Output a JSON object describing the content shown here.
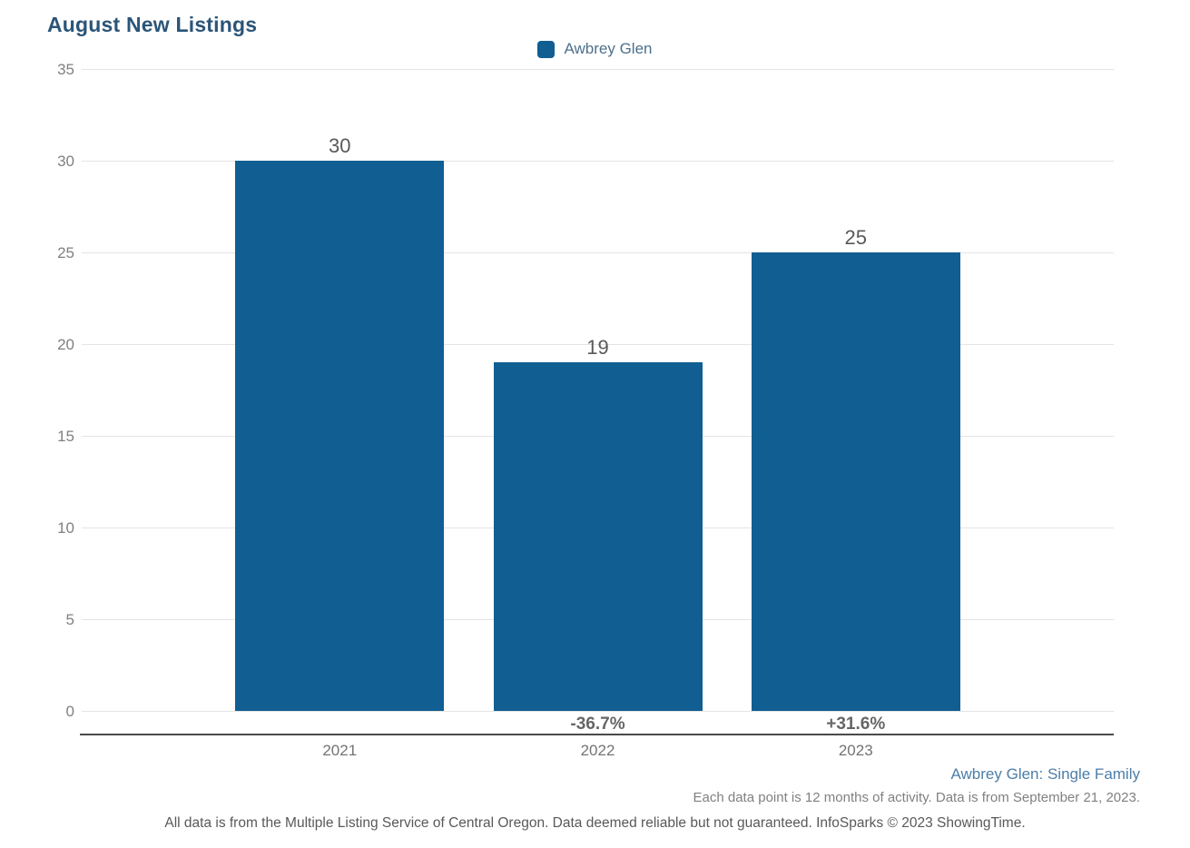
{
  "chart": {
    "title": "August New Listings"
  },
  "chart_data": {
    "type": "bar",
    "title": "August New Listings",
    "categories": [
      "2021",
      "2022",
      "2023"
    ],
    "series": [
      {
        "name": "Awbrey Glen",
        "values": [
          30,
          19,
          25
        ],
        "change_labels": [
          "",
          "-36.7%",
          "+31.6%"
        ],
        "color": "#115e92"
      }
    ],
    "ylim": [
      0,
      35
    ],
    "yticks": [
      0,
      5,
      10,
      15,
      20,
      25,
      30,
      35
    ],
    "grid": "horizontal",
    "legend_position": "top-center",
    "value_labels_shown": true
  },
  "footer": {
    "series_link": "Awbrey Glen: Single Family",
    "data_note": "Each data point is 12 months of activity. Data is from September 21, 2023.",
    "disclaimer": "All data is from the Multiple Listing Service of Central Oregon. Data deemed reliable but not guaranteed. InfoSparks © 2023 ShowingTime."
  },
  "colors": {
    "bar": "#115e92",
    "title_text": "#2b5578",
    "legend_text": "#4d708c",
    "link_text": "#4d7ea8",
    "gridline": "#e4e4e4",
    "axis_line": "#4a4a4a",
    "ytick_text": "#808080",
    "category_text": "#737373",
    "value_text": "#595959",
    "pct_text": "#666666",
    "note_text": "#808080",
    "disclaimer_text": "#595959"
  }
}
